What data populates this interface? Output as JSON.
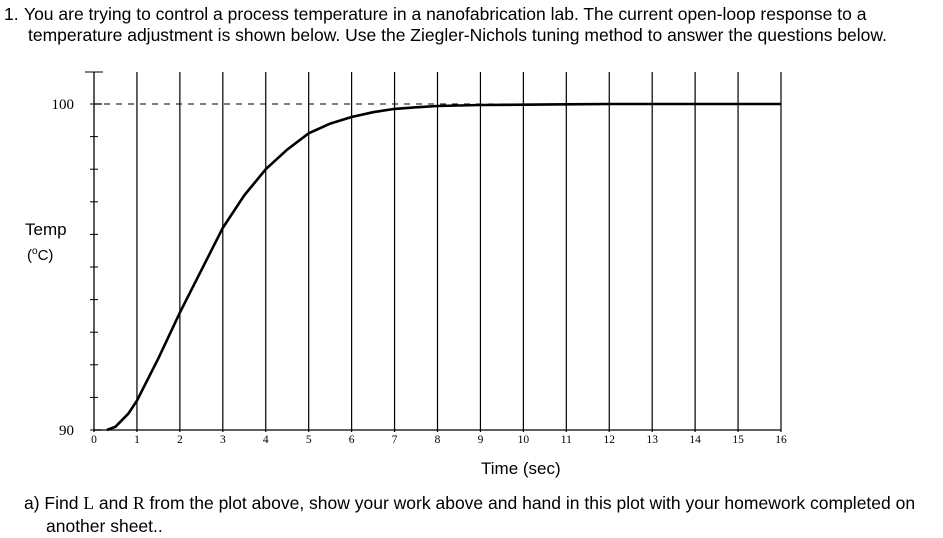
{
  "question": {
    "number": "1.",
    "line1": "You are trying to control a process temperature in a nanofabrication lab.  The current open-loop response to a",
    "line2": "temperature adjustment is shown below.   Use the Ziegler-Nichols tuning method to answer the questions below."
  },
  "part_a": {
    "prefix": "a) Find ",
    "var_L": "L",
    "mid": " and ",
    "var_R": "R",
    "suffix": " from the plot above, show your work above and hand in this plot with your homework completed on",
    "line2": "another sheet.."
  },
  "chart_data": {
    "type": "line",
    "title": "",
    "xlabel": "Time (sec)",
    "ylabel": "Temp",
    "yunits_pre": "(",
    "yunits_sup": "o",
    "yunits_post": "C)",
    "xlim": [
      0,
      16
    ],
    "ylim": [
      90,
      100
    ],
    "x_ticks": [
      "0",
      "1",
      "2",
      "3",
      "4",
      "5",
      "6",
      "7",
      "8",
      "9",
      "10",
      "11",
      "12",
      "13",
      "14",
      "15",
      "16"
    ],
    "y_tick_labels": [
      {
        "value": 100,
        "label": "100"
      },
      {
        "value": 90,
        "label": "90"
      }
    ],
    "vertical_grid": true,
    "reference_line": {
      "y": 100,
      "style": "dashed"
    },
    "series": [
      {
        "x": [
          0.3,
          0.5,
          0.8,
          1.0,
          1.5,
          2.0,
          2.5,
          3.0,
          3.5,
          4.0,
          4.5,
          5.0,
          5.5,
          6.0,
          6.5,
          7.0,
          7.5,
          8.0,
          9.0,
          10.0,
          11.0,
          12.0,
          13.0,
          14.0,
          15.0,
          16.0
        ],
        "y": [
          90.0,
          90.1,
          90.5,
          90.9,
          92.2,
          93.6,
          94.9,
          96.2,
          97.2,
          98.0,
          98.6,
          99.1,
          99.4,
          99.6,
          99.75,
          99.85,
          99.9,
          99.94,
          99.97,
          99.98,
          99.99,
          100.0,
          100.0,
          100.0,
          100.0,
          100.0
        ]
      }
    ]
  }
}
